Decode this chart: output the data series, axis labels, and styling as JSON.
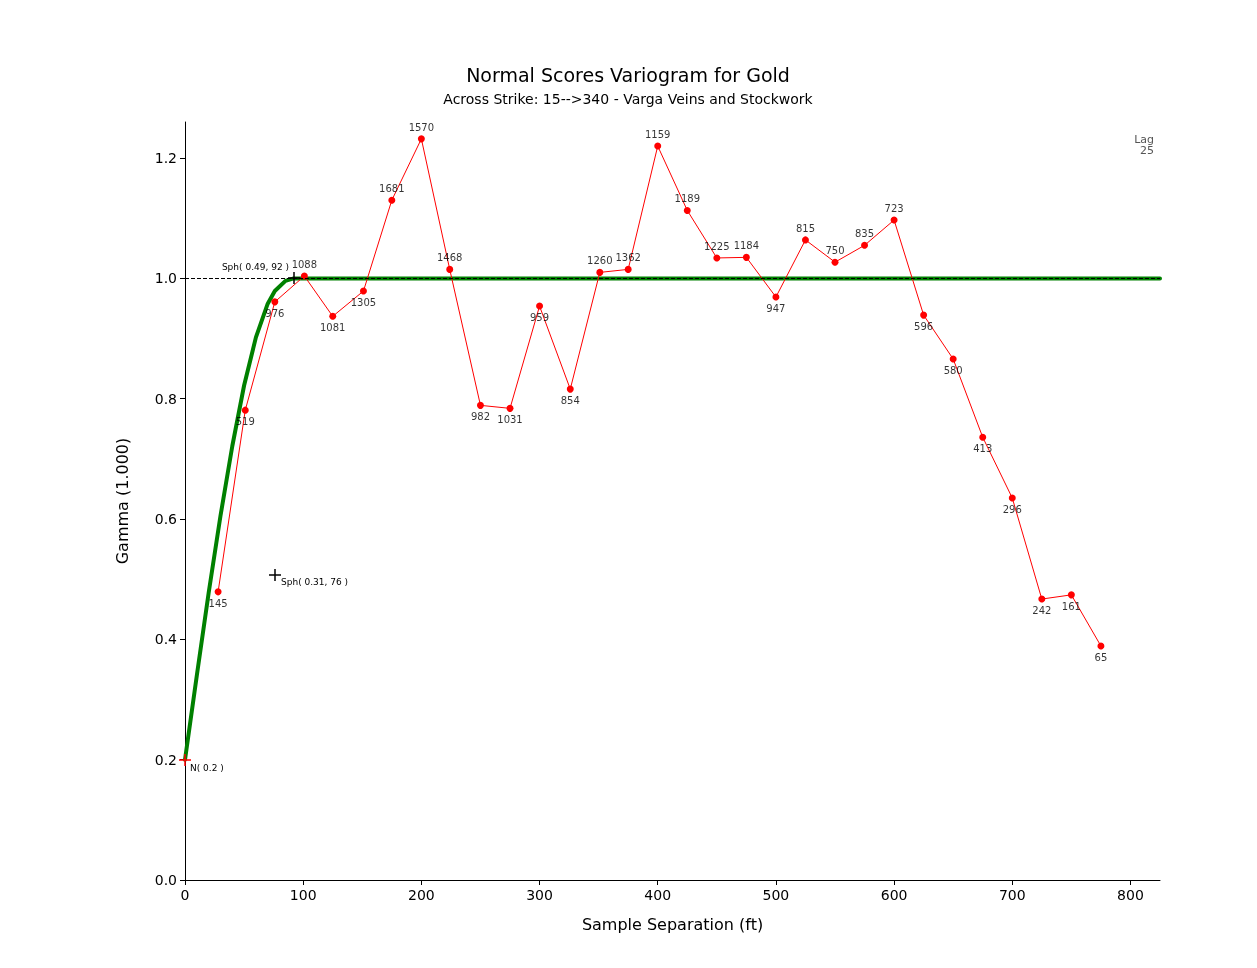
{
  "chart_data": {
    "type": "line",
    "title": "Normal Scores Variogram for Gold",
    "subtitle": "Across Strike: 15-->340 - Varga Veins and Stockwork",
    "xlabel": "Sample Separation (ft)",
    "ylabel": "Gamma (1.000)",
    "xlim": [
      0,
      825
    ],
    "xticks": [
      0,
      100,
      200,
      300,
      400,
      500,
      600,
      700,
      800
    ],
    "ylim": [
      0,
      1.26
    ],
    "yticks": [
      {
        "value": 0,
        "label": "0.0"
      },
      0.2,
      0.4,
      0.6,
      0.8,
      {
        "value": 1,
        "label": "1.0"
      },
      1.2
    ],
    "grid": false,
    "series": [
      {
        "color": "#ff0000",
        "marker": "circle",
        "line_style": "solid",
        "x": [
          28,
          51,
          76,
          101,
          125,
          151,
          175,
          200,
          224,
          250,
          275,
          300,
          326,
          351,
          375,
          400,
          425,
          450,
          475,
          500,
          525,
          550,
          575,
          600,
          625,
          650,
          675,
          700,
          725,
          750,
          775
        ],
        "values": [
          0.479,
          0.781,
          0.961,
          1.004,
          0.937,
          0.979,
          1.13,
          1.232,
          1.015,
          0.789,
          0.784,
          0.954,
          0.816,
          1.01,
          1.015,
          1.22,
          1.113,
          1.034,
          1.035,
          0.969,
          1.064,
          1.027,
          1.055,
          1.097,
          0.939,
          0.866,
          0.736,
          0.635,
          0.467,
          0.474,
          0.389
        ]
      },
      {
        "color": "#008000",
        "marker": "none",
        "line_style": "solid",
        "x": [
          0,
          10,
          20,
          30,
          40,
          50,
          60,
          70,
          76,
          85,
          92,
          825
        ],
        "values": [
          0.2,
          0.34,
          0.477,
          0.605,
          0.721,
          0.822,
          0.902,
          0.958,
          0.979,
          0.996,
          1.0,
          1.0
        ]
      }
    ],
    "ref_lines": [
      {
        "axis": "y",
        "value": 1.0,
        "color": "#000000",
        "line_style": "dashed"
      }
    ],
    "annotations": [
      "N( 0.2 )",
      "Sph( 0.49, 92 )",
      "Sph( 0.31, 76 )",
      "Lag 25",
      {
        "text": "145",
        "x": 28,
        "y": 0.479
      },
      {
        "text": "519",
        "x": 51,
        "y": 0.781
      },
      {
        "text": "976",
        "x": 76,
        "y": 0.961
      },
      {
        "text": "1088",
        "x": 101,
        "y": 1.004
      },
      {
        "text": "1081",
        "x": 125,
        "y": 0.937
      },
      {
        "text": "1305",
        "x": 151,
        "y": 0.979
      },
      {
        "text": "1681",
        "x": 175,
        "y": 1.13
      },
      {
        "text": "1570",
        "x": 200,
        "y": 1.232
      },
      {
        "text": "1468",
        "x": 224,
        "y": 1.015
      },
      {
        "text": "982",
        "x": 250,
        "y": 0.789
      },
      {
        "text": "1031",
        "x": 275,
        "y": 0.784
      },
      {
        "text": "959",
        "x": 300,
        "y": 0.954
      },
      {
        "text": "854",
        "x": 326,
        "y": 0.816
      },
      {
        "text": "1260",
        "x": 351,
        "y": 1.01
      },
      {
        "text": "1362",
        "x": 375,
        "y": 1.015
      },
      {
        "text": "1159",
        "x": 400,
        "y": 1.22
      },
      {
        "text": "1189",
        "x": 425,
        "y": 1.113
      },
      {
        "text": "1225",
        "x": 450,
        "y": 1.034
      },
      {
        "text": "1184",
        "x": 475,
        "y": 1.035
      },
      {
        "text": "947",
        "x": 500,
        "y": 0.969
      },
      {
        "text": "815",
        "x": 525,
        "y": 1.064
      },
      {
        "text": "750",
        "x": 550,
        "y": 1.027
      },
      {
        "text": "835",
        "x": 575,
        "y": 1.055
      },
      {
        "text": "723",
        "x": 600,
        "y": 1.097
      },
      {
        "text": "596",
        "x": 625,
        "y": 0.939
      },
      {
        "text": "580",
        "x": 650,
        "y": 0.866
      },
      {
        "text": "413",
        "x": 675,
        "y": 0.736
      },
      {
        "text": "296",
        "x": 700,
        "y": 0.635
      },
      {
        "text": "242",
        "x": 725,
        "y": 0.467
      },
      {
        "text": "161",
        "x": 750,
        "y": 0.474
      },
      {
        "text": "65",
        "x": 775,
        "y": 0.389
      }
    ]
  }
}
